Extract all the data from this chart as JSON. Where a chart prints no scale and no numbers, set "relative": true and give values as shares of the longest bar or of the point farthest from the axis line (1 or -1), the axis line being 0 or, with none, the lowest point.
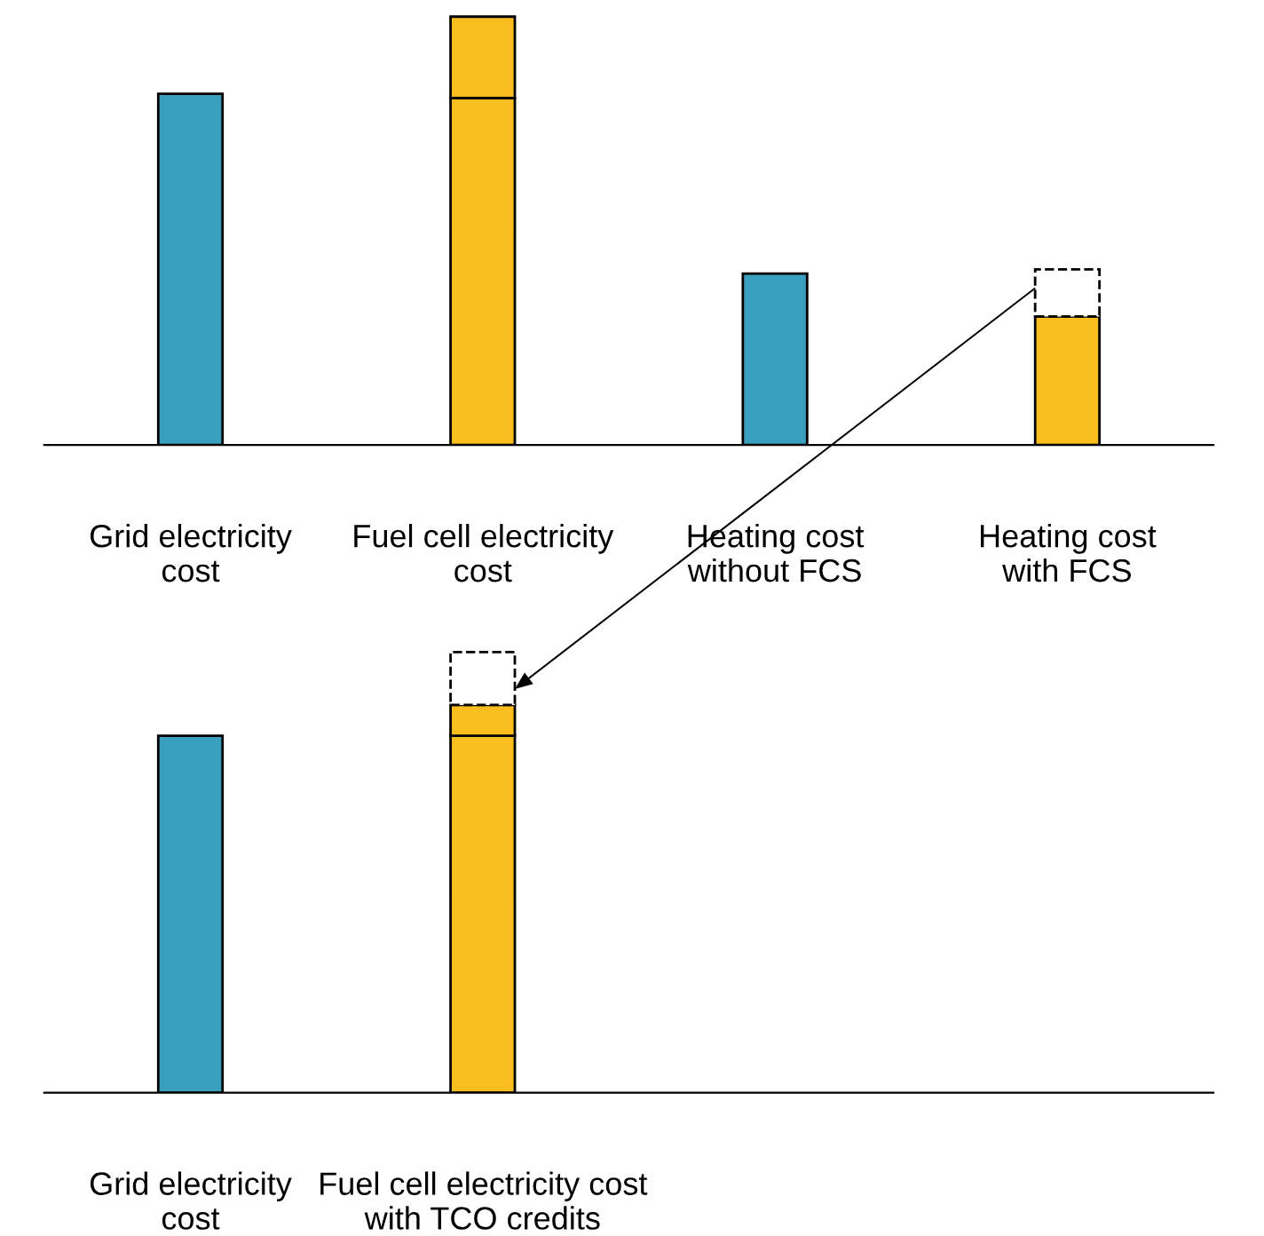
{
  "chart_data": [
    {
      "type": "bar",
      "relative": true,
      "stacked": true,
      "categories": [
        "Grid electricity\ncost",
        "Fuel cell electricity\ncost",
        "Heating cost\nwithout FCS",
        "Heating cost\nwith FCS"
      ],
      "series": [
        {
          "color": "#3a9fbd",
          "values": [
            0.82,
            null,
            0.4,
            null
          ]
        },
        {
          "color": "#f9bd1f",
          "values": [
            null,
            0.81,
            null,
            0.3
          ]
        },
        {
          "color": "#f9bd1f",
          "values": [
            null,
            0.19,
            null,
            null
          ]
        },
        {
          "color": "#ffffff",
          "line_style": "dashed",
          "values": [
            null,
            null,
            null,
            0.11
          ]
        }
      ]
    },
    {
      "type": "bar",
      "relative": true,
      "stacked": true,
      "categories": [
        "Grid electricity\ncost",
        "Fuel cell electricity cost\nwith TCO credits"
      ],
      "series": [
        {
          "color": "#3a9fbd",
          "values": [
            0.81,
            null
          ]
        },
        {
          "color": "#f9bd1f",
          "values": [
            null,
            0.81
          ]
        },
        {
          "color": "#f9bd1f",
          "values": [
            null,
            0.07
          ]
        },
        {
          "color": "#ffffff",
          "line_style": "dashed",
          "values": [
            null,
            0.12
          ]
        }
      ]
    }
  ]
}
